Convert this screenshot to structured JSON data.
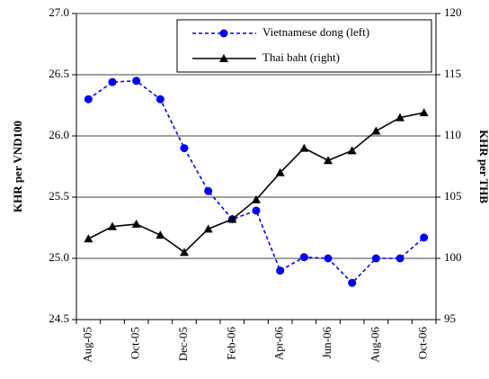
{
  "chart_data": {
    "type": "line",
    "categories": [
      "Aug-05",
      null,
      "Oct-05",
      null,
      "Dec-05",
      null,
      "Feb-06",
      null,
      "Apr-06",
      null,
      "Jun-06",
      null,
      "Aug-06",
      null,
      "Oct-06"
    ],
    "series": [
      {
        "name": "Vietnamese dong (left)",
        "color": "#0000ff",
        "style": "dashed",
        "marker": "circle",
        "values": [
          26.3,
          26.44,
          26.45,
          26.3,
          25.9,
          25.55,
          25.32,
          25.39,
          24.9,
          25.01,
          25.0,
          24.8,
          25.0,
          25.0,
          25.17
        ]
      },
      {
        "name": "Thai baht (right)",
        "color": "#000000",
        "style": "solid",
        "marker": "triangle",
        "axis": "y2",
        "values": [
          101.6,
          102.6,
          102.8,
          101.9,
          100.5,
          102.4,
          103.2,
          104.8,
          107.0,
          109.0,
          108.0,
          108.8,
          110.4,
          111.5,
          111.9
        ]
      }
    ],
    "ylabel": "KHR per VND100",
    "y2label": "KHR per THB",
    "ylim": [
      24.5,
      27.0
    ],
    "yticks": [
      24.5,
      {
        "value": 25,
        "label": "25.0"
      },
      25.5,
      {
        "value": 26,
        "label": "26.0"
      },
      26.5,
      {
        "value": 27,
        "label": "27.0"
      }
    ],
    "y2lim": [
      95,
      120
    ],
    "y2ticks": [
      95,
      100,
      105,
      110,
      115,
      120
    ],
    "grid": true,
    "legend": "top-right"
  }
}
